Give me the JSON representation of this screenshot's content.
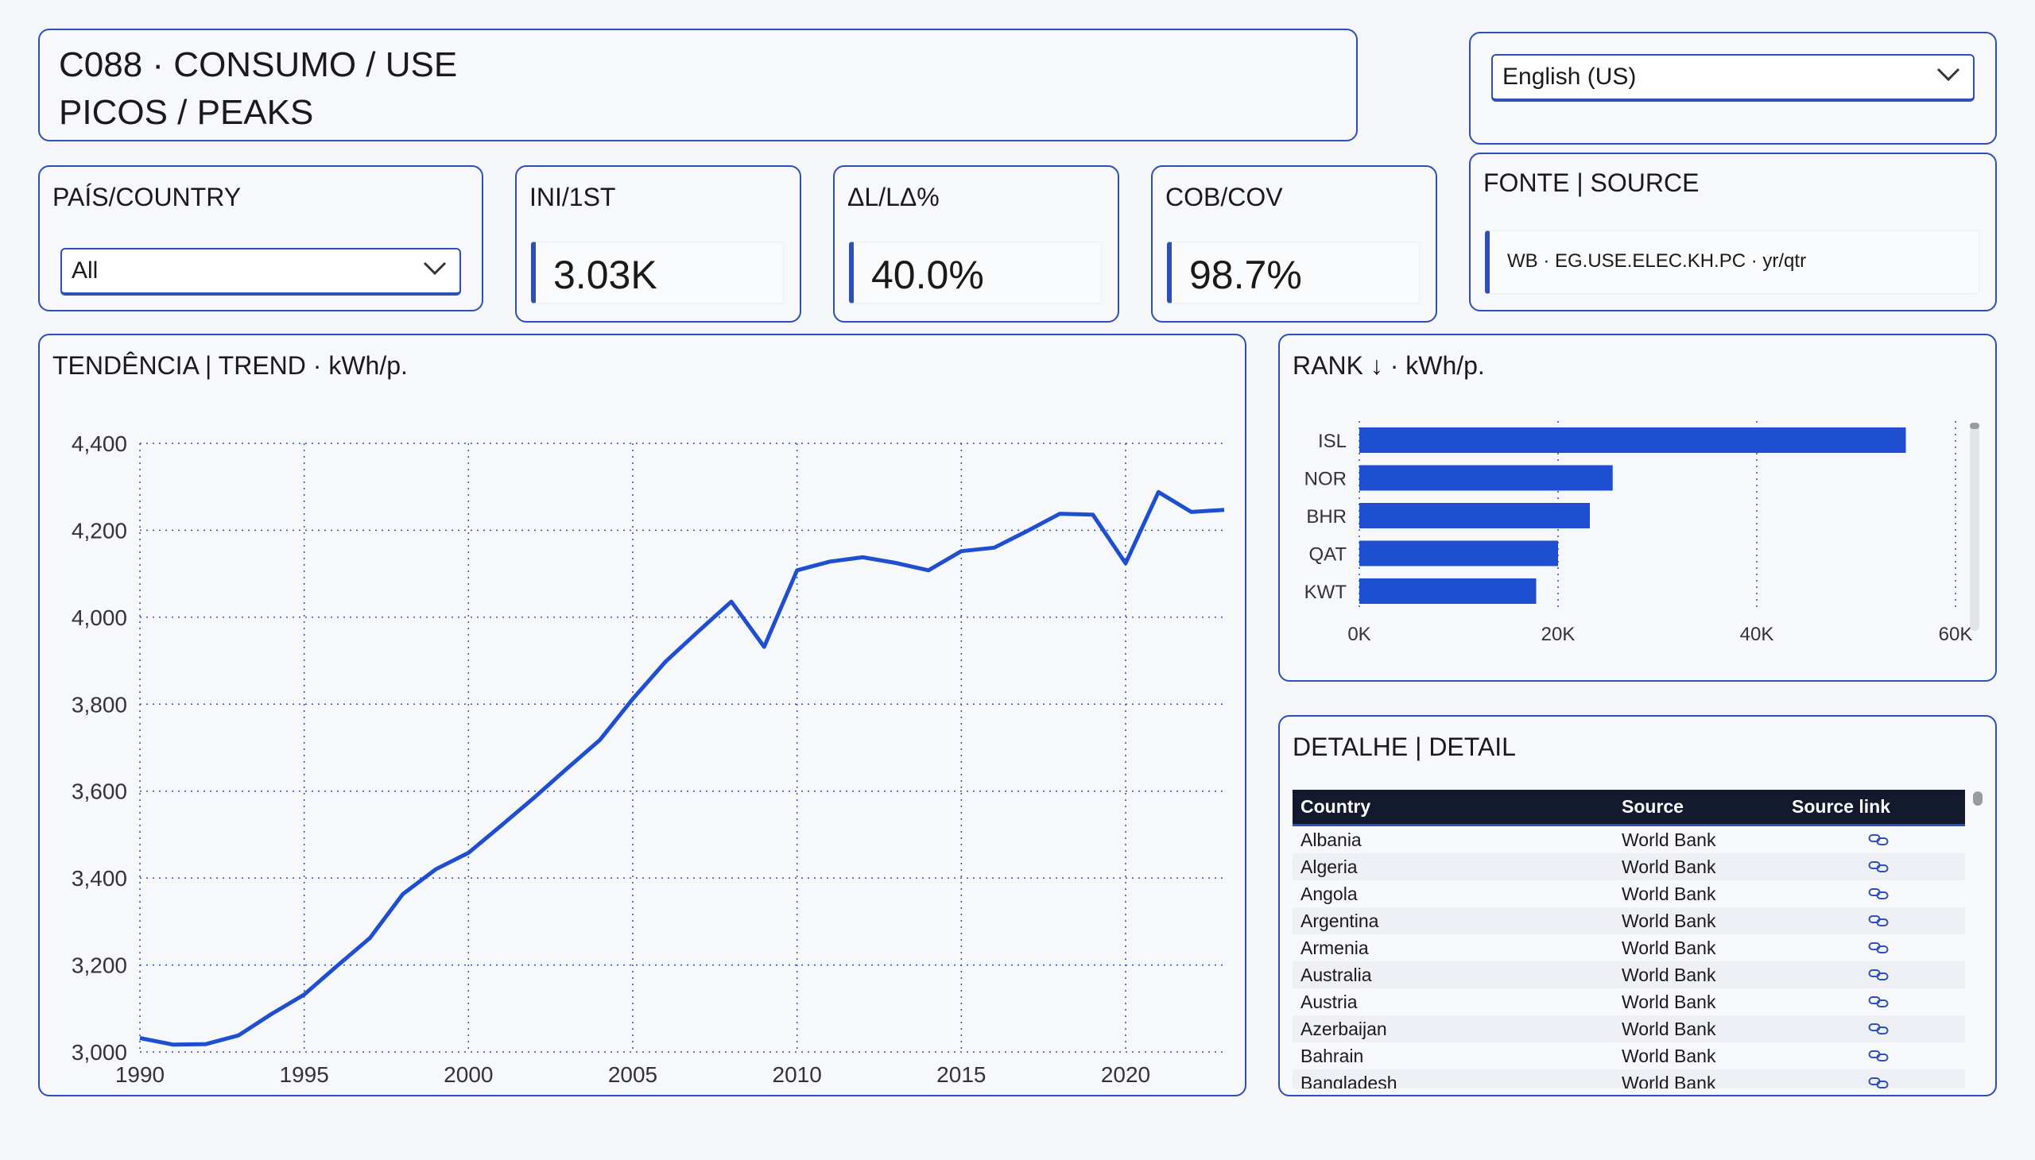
{
  "header": {
    "title_line1": "C088 · CONSUMO / USE",
    "title_line2": "PICOS / PEAKS"
  },
  "language": {
    "selected": "English (US)"
  },
  "country_filter": {
    "label": "PAÍS/COUNTRY",
    "selected": "All"
  },
  "kpis": [
    {
      "label": "INI/1ST",
      "value": "3.03K"
    },
    {
      "label": "ΔL/LΔ%",
      "value": "40.0%"
    },
    {
      "label": "COB/COV",
      "value": "98.7%"
    }
  ],
  "source": {
    "label": "FONTE | SOURCE",
    "text": "WB · EG.USE.ELEC.KH.PC · yr/qtr"
  },
  "trend": {
    "title": "TENDÊNCIA | TREND · kWh/p.",
    "chart_data": {
      "type": "line",
      "x": [
        1990,
        1991,
        1992,
        1993,
        1994,
        1995,
        1996,
        1997,
        1998,
        1999,
        2000,
        2001,
        2002,
        2003,
        2004,
        2005,
        2006,
        2007,
        2008,
        2009,
        2010,
        2011,
        2012,
        2013,
        2014,
        2015,
        2016,
        2017,
        2018,
        2019,
        2020,
        2021,
        2022,
        2023
      ],
      "values": [
        3032,
        3017,
        3018,
        3038,
        3087,
        3132,
        3198,
        3262,
        3363,
        3420,
        3458,
        3521,
        3585,
        3652,
        3718,
        3812,
        3898,
        3968,
        4036,
        3932,
        4108,
        4128,
        4138,
        4125,
        4108,
        4152,
        4160,
        4198,
        4238,
        4236,
        4124,
        4288,
        4242,
        4247
      ],
      "x_ticks": [
        "1990",
        "1995",
        "2000",
        "2005",
        "2010",
        "2015",
        "2020"
      ],
      "y_ticks": [
        "4,400",
        "4,200",
        "4,000",
        "3,800",
        "3,600",
        "3,400",
        "3,200",
        "3,000"
      ],
      "xlim": [
        1990,
        2023
      ],
      "ylim": [
        3000,
        4400
      ],
      "grid": true,
      "color": "#1f4fd1"
    }
  },
  "rank": {
    "title": "RANK ↓ · kWh/p.",
    "chart_data": {
      "type": "bar",
      "orientation": "horizontal",
      "categories": [
        "ISL",
        "NOR",
        "BHR",
        "QAT",
        "KWT"
      ],
      "values": [
        55000,
        25500,
        23200,
        20000,
        17800
      ],
      "x_ticks": [
        "0K",
        "20K",
        "40K",
        "60K"
      ],
      "xlim": [
        0,
        60000
      ],
      "grid": true,
      "color": "#1f4fd1"
    }
  },
  "detail": {
    "title": "DETALHE | DETAIL",
    "columns": [
      "Country",
      "Source",
      "Source link"
    ],
    "rows": [
      [
        "Albania",
        "World Bank"
      ],
      [
        "Algeria",
        "World Bank"
      ],
      [
        "Angola",
        "World Bank"
      ],
      [
        "Argentina",
        "World Bank"
      ],
      [
        "Armenia",
        "World Bank"
      ],
      [
        "Australia",
        "World Bank"
      ],
      [
        "Austria",
        "World Bank"
      ],
      [
        "Azerbaijan",
        "World Bank"
      ],
      [
        "Bahrain",
        "World Bank"
      ],
      [
        "Bangladesh",
        "World Bank"
      ]
    ]
  }
}
